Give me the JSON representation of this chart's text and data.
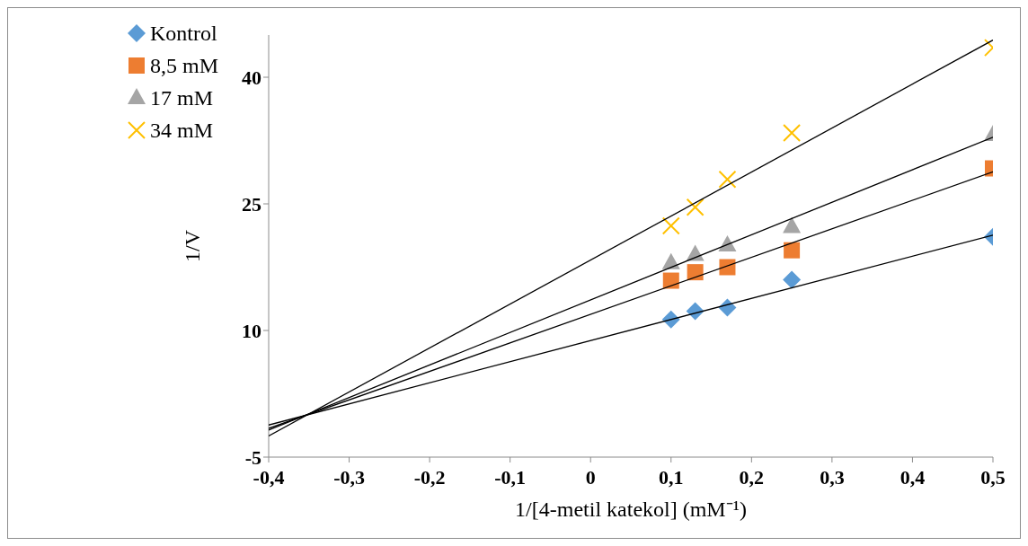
{
  "chart_data": {
    "type": "scatter",
    "xlabel": "1/[4-metil katekol] (mM⁻¹)",
    "ylabel": "1/V",
    "legend": "top left",
    "grid": false,
    "xlim": [
      -0.4,
      0.5
    ],
    "xticks": [
      {
        "value": -0.4,
        "label": "-0,4"
      },
      {
        "value": -0.3,
        "label": "-0,3"
      },
      {
        "value": -0.2,
        "label": "-0,2"
      },
      {
        "value": -0.1,
        "label": "-0,1"
      },
      0,
      {
        "value": 0.1,
        "label": "0,1"
      },
      {
        "value": 0.2,
        "label": "0,2"
      },
      {
        "value": 0.3,
        "label": "0,3"
      },
      {
        "value": 0.4,
        "label": "0,4"
      },
      {
        "value": 0.5,
        "label": "0,5"
      }
    ],
    "ylim": [
      -5,
      45
    ],
    "yticks": [
      -5,
      10,
      25,
      40
    ],
    "series": [
      {
        "name": "Kontrol",
        "marker": "diamond",
        "color": "#5b9bd5",
        "x": [
          0.1,
          0.13,
          0.17,
          0.25,
          0.5
        ],
        "values": [
          11.3,
          12.3,
          12.7,
          16.0,
          21.1
        ]
      },
      {
        "name": "8,5 mM",
        "marker": "square",
        "color": "#ed7d31",
        "x": [
          0.1,
          0.13,
          0.17,
          0.25,
          0.5
        ],
        "values": [
          15.9,
          16.9,
          17.5,
          19.5,
          29.2
        ]
      },
      {
        "name": "17 mM",
        "marker": "triangle",
        "color": "#a5a5a5",
        "x": [
          0.1,
          0.13,
          0.17,
          0.25,
          0.5
        ],
        "values": [
          18.0,
          19.0,
          20.1,
          22.3,
          33.2
        ]
      },
      {
        "name": "34 mM",
        "marker": "cross",
        "color": "#ffc000",
        "x": [
          0.1,
          0.13,
          0.17,
          0.25,
          0.5
        ],
        "values": [
          22.4,
          24.6,
          27.9,
          33.4,
          43.5
        ]
      },
      {
        "type": "line",
        "color": "#000000",
        "marker": "none",
        "x": [
          -0.4,
          0.5
        ],
        "values": [
          -1.2,
          21.3
        ]
      },
      {
        "type": "line",
        "color": "#000000",
        "marker": "none",
        "x": [
          -0.4,
          0.5
        ],
        "values": [
          -1.6,
          28.8
        ]
      },
      {
        "type": "line",
        "color": "#000000",
        "marker": "none",
        "x": [
          -0.4,
          0.5
        ],
        "values": [
          -1.8,
          32.9
        ]
      },
      {
        "type": "line",
        "color": "#000000",
        "marker": "none",
        "x": [
          -0.4,
          0.5
        ],
        "values": [
          -2.5,
          44.4
        ]
      }
    ]
  }
}
